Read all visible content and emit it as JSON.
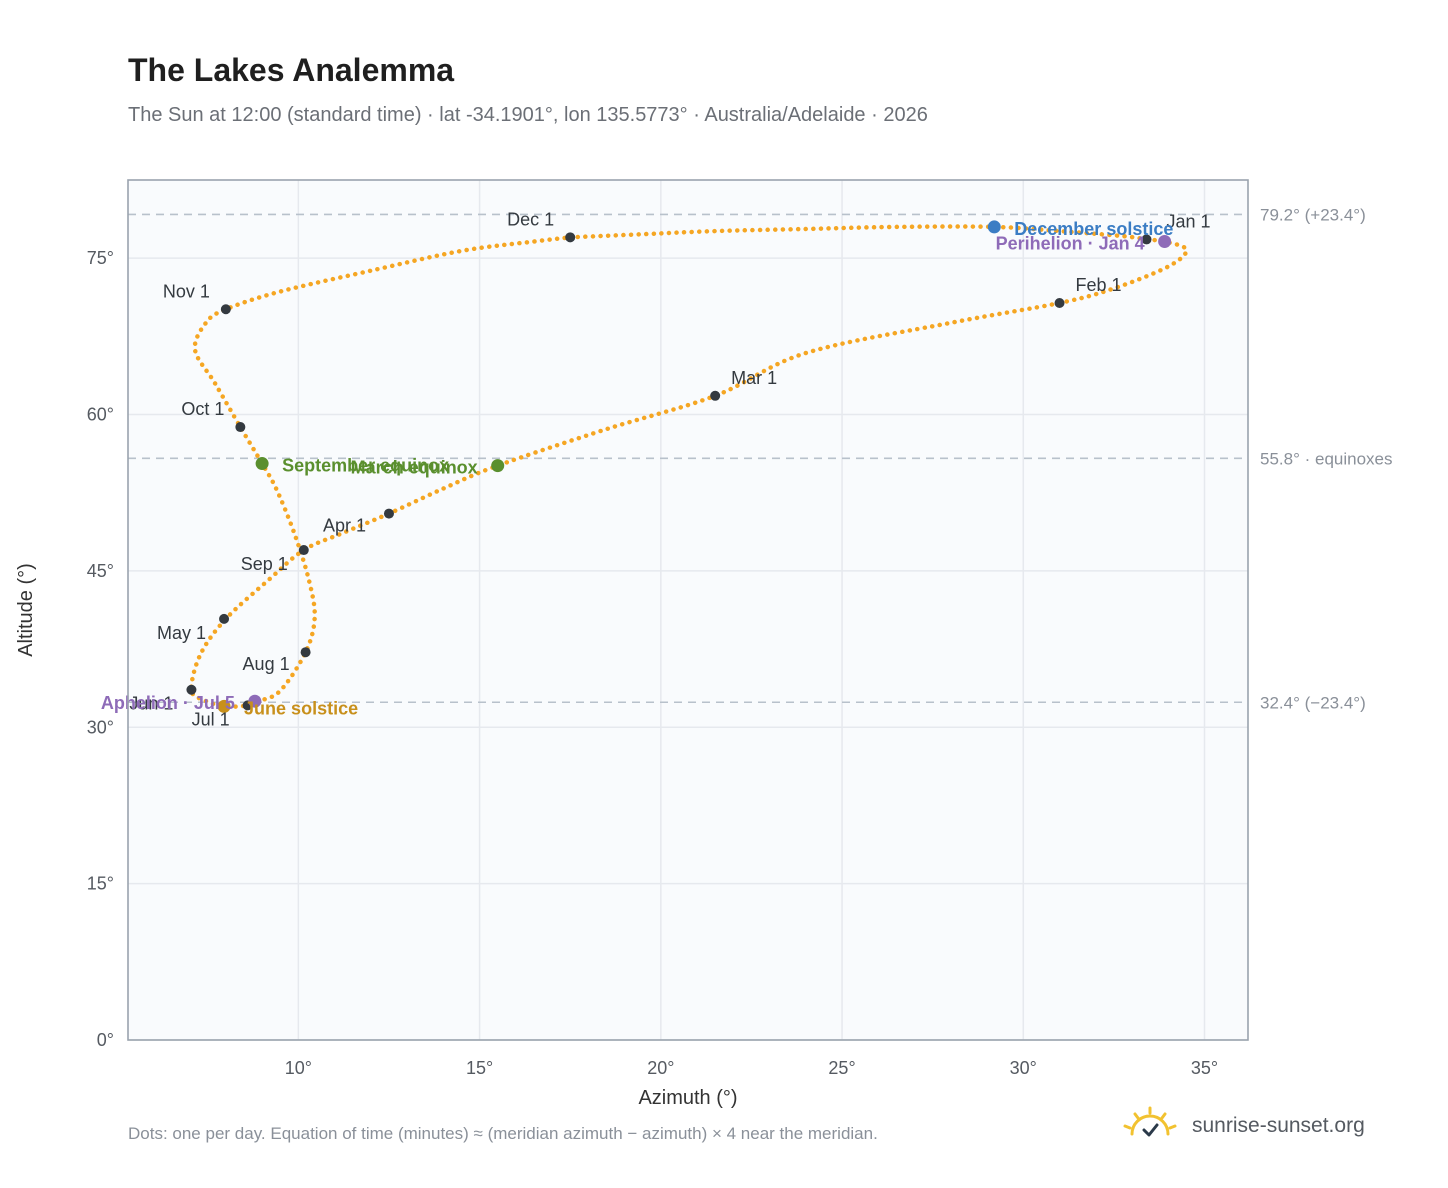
{
  "header": {
    "title": "The Lakes Analemma",
    "subtitle": "The Sun at 12:00 (standard time) · lat -34.1901°, lon 135.5773° · Australia/Adelaide · 2026"
  },
  "footer": {
    "note": "Dots: one per day. Equation of time (minutes) ≈ (meridian azimuth − azimuth) × 4 near the meridian.",
    "brand": "sunrise-sunset.org",
    "brand_icon": "sunrise-check-icon"
  },
  "chart_data": {
    "type": "scatter",
    "xlabel": "Azimuth (°)",
    "ylabel": "Altitude (°)",
    "xlim": [
      5.3,
      36.2
    ],
    "ylim": [
      0,
      82.5
    ],
    "x_ticks": [
      10,
      15,
      20,
      25,
      30,
      35
    ],
    "x_tick_labels": [
      "10°",
      "15°",
      "20°",
      "25°",
      "30°",
      "35°"
    ],
    "y_ticks": [
      0,
      15,
      30,
      45,
      60,
      75
    ],
    "y_tick_labels": [
      "0°",
      "15°",
      "30°",
      "45°",
      "60°",
      "75°"
    ],
    "grid": true,
    "reference_lines": [
      {
        "y": 79.2,
        "label": "79.2° (+23.4°)"
      },
      {
        "y": 55.8,
        "label": "55.8° · equinoxes"
      },
      {
        "y": 32.4,
        "label": "32.4° (−23.4°)"
      }
    ],
    "analemma_path": [
      [
        17.5,
        77.0
      ],
      [
        19.5,
        77.3
      ],
      [
        21.5,
        77.6
      ],
      [
        24.0,
        77.8
      ],
      [
        26.5,
        78.0
      ],
      [
        29.2,
        78.0
      ],
      [
        31.0,
        77.6
      ],
      [
        32.8,
        77.1
      ],
      [
        33.4,
        76.8
      ],
      [
        33.9,
        76.6
      ],
      [
        34.5,
        75.8
      ],
      [
        34.0,
        74.2
      ],
      [
        32.5,
        72.1
      ],
      [
        31.0,
        70.7
      ],
      [
        28.0,
        68.8
      ],
      [
        24.0,
        65.9
      ],
      [
        21.5,
        61.8
      ],
      [
        18.5,
        58.6
      ],
      [
        15.5,
        55.1
      ],
      [
        14.0,
        52.9
      ],
      [
        12.5,
        50.5
      ],
      [
        11.2,
        48.6
      ],
      [
        10.15,
        47.0
      ],
      [
        9.2,
        44.2
      ],
      [
        8.0,
        40.4
      ],
      [
        7.3,
        37.0
      ],
      [
        7.05,
        33.6
      ],
      [
        7.4,
        32.6
      ],
      [
        7.95,
        32.0
      ],
      [
        8.6,
        32.1
      ],
      [
        8.9,
        32.5
      ],
      [
        9.5,
        33.5
      ],
      [
        10.2,
        37.2
      ],
      [
        10.45,
        40.5
      ],
      [
        10.3,
        44.0
      ],
      [
        9.9,
        48.5
      ],
      [
        9.4,
        52.8
      ],
      [
        9.0,
        55.3
      ],
      [
        8.4,
        58.8
      ],
      [
        7.7,
        63.0
      ],
      [
        7.15,
        66.2
      ],
      [
        7.45,
        68.8
      ],
      [
        8.0,
        70.1
      ],
      [
        9.5,
        71.8
      ],
      [
        12.0,
        73.8
      ],
      [
        14.5,
        75.7
      ],
      [
        16.5,
        76.6
      ],
      [
        17.5,
        77.0
      ]
    ],
    "month_markers": [
      {
        "label": "Jan 1",
        "x": 33.4,
        "y": 76.8
      },
      {
        "label": "Feb 1",
        "x": 31.0,
        "y": 70.7
      },
      {
        "label": "Mar 1",
        "x": 21.5,
        "y": 61.8
      },
      {
        "label": "Apr 1",
        "x": 12.5,
        "y": 50.5
      },
      {
        "label": "May 1",
        "x": 7.95,
        "y": 40.4
      },
      {
        "label": "Jun 1",
        "x": 7.05,
        "y": 33.6
      },
      {
        "label": "Jul 1",
        "x": 8.6,
        "y": 32.1
      },
      {
        "label": "Aug 1",
        "x": 10.2,
        "y": 37.2
      },
      {
        "label": "Sep 1",
        "x": 10.15,
        "y": 47.0
      },
      {
        "label": "Oct 1",
        "x": 8.4,
        "y": 58.8
      },
      {
        "label": "Nov 1",
        "x": 8.0,
        "y": 70.1
      },
      {
        "label": "Dec 1",
        "x": 17.5,
        "y": 77.0
      }
    ],
    "events": [
      {
        "label": "December solstice",
        "x": 29.2,
        "y": 78.0,
        "color": "#3b7dc4"
      },
      {
        "label": "Perihelion · Jan 4",
        "x": 33.9,
        "y": 76.6,
        "color": "#8e6bb8"
      },
      {
        "label": "March equinox",
        "x": 15.5,
        "y": 55.1,
        "color": "#5a8f2e"
      },
      {
        "label": "September equinox",
        "x": 9.0,
        "y": 55.3,
        "color": "#5a8f2e"
      },
      {
        "label": "June solstice",
        "x": 7.95,
        "y": 32.0,
        "color": "#c8901c"
      },
      {
        "label": "Aphelion · Jul 5",
        "x": 8.8,
        "y": 32.5,
        "color": "#8e6bb8"
      }
    ],
    "colors": {
      "path": "#f5a623",
      "month_marker": "#343a40",
      "grid": "#e6e9ee",
      "plot_background": "#f9fbfd",
      "frame": "#9aa3ae",
      "reference_line": "#b8c1cb"
    }
  }
}
